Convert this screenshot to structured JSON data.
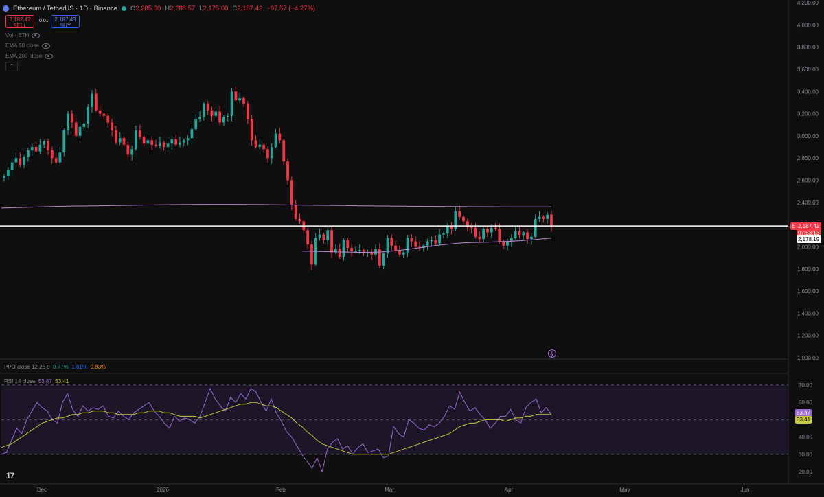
{
  "header": {
    "symbol": "Ethereum / TetherUS · 1D · Binance",
    "open_label": "O",
    "open": "2,285.00",
    "high_label": "H",
    "high": "2,288.57",
    "low_label": "L",
    "low": "2,175.00",
    "close_label": "C",
    "close": "2,187.42",
    "change": "−97.57 (−4.27%)"
  },
  "trade": {
    "sell_price": "2,187.42",
    "sell_label": "SELL",
    "spread": "0.01",
    "buy_price": "2,187.43",
    "buy_label": "BUY"
  },
  "indicators": [
    "Vol · ETH",
    "EMA 50 close",
    "EMA 200 close"
  ],
  "ppo": {
    "label": "PPO close 12 26 9",
    "v1": "0.77%",
    "v2": "1.61%",
    "v3": "0.83%"
  },
  "rsi": {
    "label": "RSI 14 close",
    "v1": "53.87",
    "v2": "53.41"
  },
  "price_tags": {
    "symbol": "ETHUSDT",
    "last": "2,187.42",
    "countdown": "07:53:13",
    "ema": "2,178.19",
    "rsi": "53.87",
    "rsi_ma": "53.41"
  },
  "colors": {
    "up": "#26a69a",
    "down": "#f23645",
    "ema": "#b38bd1",
    "rsi": "#9c6ad6",
    "rsi_ma": "#c8c83a",
    "background": "#0f0f0f"
  },
  "chart_data": {
    "type": "candlestick",
    "symbol": "ETHUSDT",
    "price_axis_ticks": [
      "4,200.00",
      "4,000.00",
      "3,800.00",
      "3,600.00",
      "3,400.00",
      "3,200.00",
      "3,000.00",
      "2,800.00",
      "2,600.00",
      "2,400.00",
      "2,200.00",
      "2,000.00",
      "1,800.00",
      "1,600.00",
      "1,400.00",
      "1,200.00",
      "1,000.00"
    ],
    "rsi_axis_ticks": [
      "70.00",
      "60.00",
      "50.00",
      "40.00",
      "30.00",
      "20.00"
    ],
    "time_axis_labels": [
      "Dec",
      "2026",
      "Feb",
      "Mar",
      "Apr",
      "May",
      "Jun"
    ],
    "ylim": [
      1000,
      4200
    ],
    "rsi_ylim": [
      20,
      70
    ],
    "rsi_bands": [
      70,
      50,
      30
    ],
    "last_price": 2187.42,
    "ema_last": 2178.19,
    "closes": [
      2640,
      2690,
      2760,
      2800,
      2740,
      2810,
      2870,
      2900,
      2860,
      2920,
      2950,
      2870,
      2800,
      2760,
      2850,
      3050,
      3200,
      3120,
      3000,
      3080,
      3110,
      3260,
      3380,
      3230,
      3200,
      3180,
      3120,
      3050,
      2940,
      2980,
      2920,
      2830,
      2880,
      3050,
      2990,
      2930,
      2960,
      2920,
      2910,
      2940,
      2900,
      2930,
      2970,
      2920,
      2940,
      2960,
      2980,
      3060,
      3150,
      3170,
      3290,
      3230,
      3180,
      3220,
      3120,
      3170,
      3180,
      3400,
      3320,
      3340,
      3290,
      3150,
      2960,
      2900,
      2920,
      2880,
      2800,
      2900,
      3020,
      2960,
      2770,
      2600,
      2380,
      2250,
      2230,
      2150,
      2020,
      1840,
      2080,
      2110,
      2060,
      2150,
      1950,
      1980,
      1910,
      2060,
      1990,
      1960,
      1960,
      1970,
      1950,
      1950,
      1930,
      1980,
      1830,
      1940,
      2080,
      2010,
      1960,
      1930,
      1950,
      2080,
      2050,
      2000,
      1990,
      2010,
      2050,
      2060,
      2030,
      2110,
      2120,
      2190,
      2160,
      2320,
      2270,
      2230,
      2180,
      2170,
      2090,
      2070,
      2160,
      2130,
      2170,
      2160,
      2050,
      2010,
      2050,
      2080,
      2140,
      2100,
      2130,
      2070,
      2090,
      2250,
      2270,
      2250,
      2290,
      2187
    ],
    "ema200": [
      2350,
      2355,
      2360,
      2365,
      2368,
      2370,
      2372,
      2375,
      2378,
      2380,
      2382,
      2383,
      2383,
      2382,
      2380,
      2378,
      2376,
      2374,
      2372,
      2370,
      2368,
      2366,
      2365,
      2364,
      2363,
      2362,
      2361,
      2360,
      2360,
      2360
    ],
    "ema50": [
      1960,
      1960,
      1958,
      1956,
      1955,
      1953,
      1952,
      1950,
      1950,
      1952,
      1955,
      1960,
      1968,
      1975,
      1985,
      1995,
      2005,
      2015,
      2022,
      2030,
      2035,
      2038,
      2040,
      2042,
      2045,
      2048,
      2050,
      2055,
      2060,
      2066,
      2072,
      2078
    ],
    "rsi": [
      30,
      31,
      38,
      45,
      42,
      50,
      55,
      60,
      57,
      55,
      50,
      48,
      60,
      65,
      56,
      52,
      58,
      55,
      57,
      56,
      58,
      52,
      51,
      55,
      52,
      50,
      54,
      56,
      58,
      60,
      55,
      52,
      48,
      45,
      52,
      49,
      51,
      50,
      48,
      52,
      60,
      68,
      62,
      58,
      55,
      63,
      60,
      65,
      62,
      68,
      66,
      60,
      55,
      62,
      54,
      49,
      43,
      40,
      35,
      30,
      26,
      22,
      28,
      20,
      33,
      37,
      39,
      33,
      35,
      30,
      34,
      36,
      31,
      32,
      33,
      28,
      29,
      46,
      42,
      40,
      50,
      48,
      45,
      44,
      47,
      46,
      48,
      52,
      58,
      56,
      66,
      60,
      55,
      57,
      53,
      50,
      45,
      48,
      52,
      52,
      56,
      50,
      48,
      57,
      60,
      62,
      54,
      57,
      53
    ],
    "rsi_ma": [
      34,
      35,
      36,
      38,
      40,
      42,
      44,
      46,
      48,
      49,
      50,
      51,
      51,
      52,
      53,
      53,
      54,
      54,
      55,
      55,
      55,
      54,
      54,
      53,
      53,
      53,
      53,
      54,
      54,
      55,
      55,
      55,
      54,
      54,
      53,
      52,
      52,
      52,
      52,
      51,
      52,
      53,
      54,
      55,
      56,
      57,
      58,
      59,
      59,
      60,
      60,
      59,
      58,
      58,
      57,
      55,
      53,
      51,
      48,
      46,
      43,
      41,
      38,
      36,
      35,
      34,
      33,
      32,
      31,
      30,
      30,
      30,
      30,
      30,
      30,
      30,
      30,
      31,
      32,
      33,
      34,
      35,
      36,
      37,
      38,
      39,
      40,
      41,
      42,
      44,
      46,
      47,
      48,
      48,
      49,
      50,
      50,
      50,
      50,
      49,
      50,
      51,
      51,
      52,
      52,
      53,
      53,
      53,
      53
    ]
  }
}
